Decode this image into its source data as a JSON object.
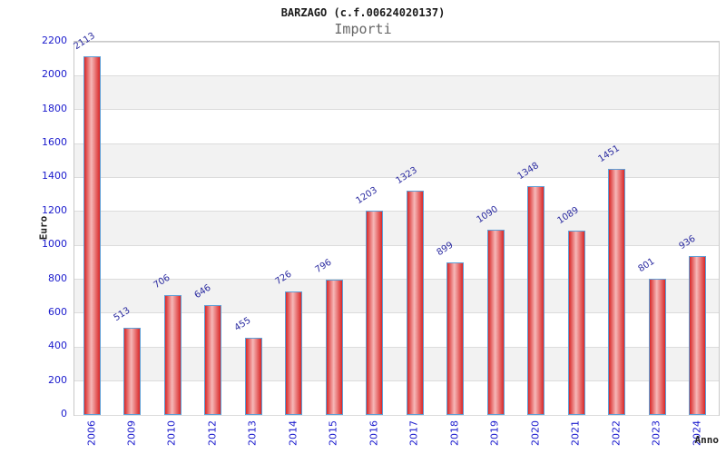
{
  "chart_data": {
    "type": "bar",
    "title": "BARZAGO (c.f.00624020137)",
    "subtitle": "Importi",
    "xlabel": "Anno",
    "ylabel": "Euro",
    "categories": [
      "2006",
      "2009",
      "2010",
      "2012",
      "2013",
      "2014",
      "2015",
      "2016",
      "2017",
      "2018",
      "2019",
      "2020",
      "2021",
      "2022",
      "2023",
      "2024"
    ],
    "values": [
      2113,
      513,
      706,
      646,
      455,
      726,
      796,
      1203,
      1323,
      899,
      1090,
      1348,
      1089,
      1451,
      801,
      936
    ],
    "y_ticks": [
      0,
      200,
      400,
      600,
      800,
      1000,
      1200,
      1400,
      1600,
      1800,
      2000,
      2200
    ],
    "ylim": [
      0,
      2200
    ],
    "grid": "horizontal-bands",
    "legend": "none",
    "colors": {
      "bar_edge_red": "#d92828",
      "bar_center_pink": "#f6b8b8",
      "bar_border_blue": "#5f9fd6",
      "tick_label_blue": "#1a1acd",
      "value_label_blue": "#2a2aa0",
      "band_gray": "#f2f2f2",
      "band_white": "#ffffff",
      "grid_line": "#dcdcdc"
    }
  }
}
